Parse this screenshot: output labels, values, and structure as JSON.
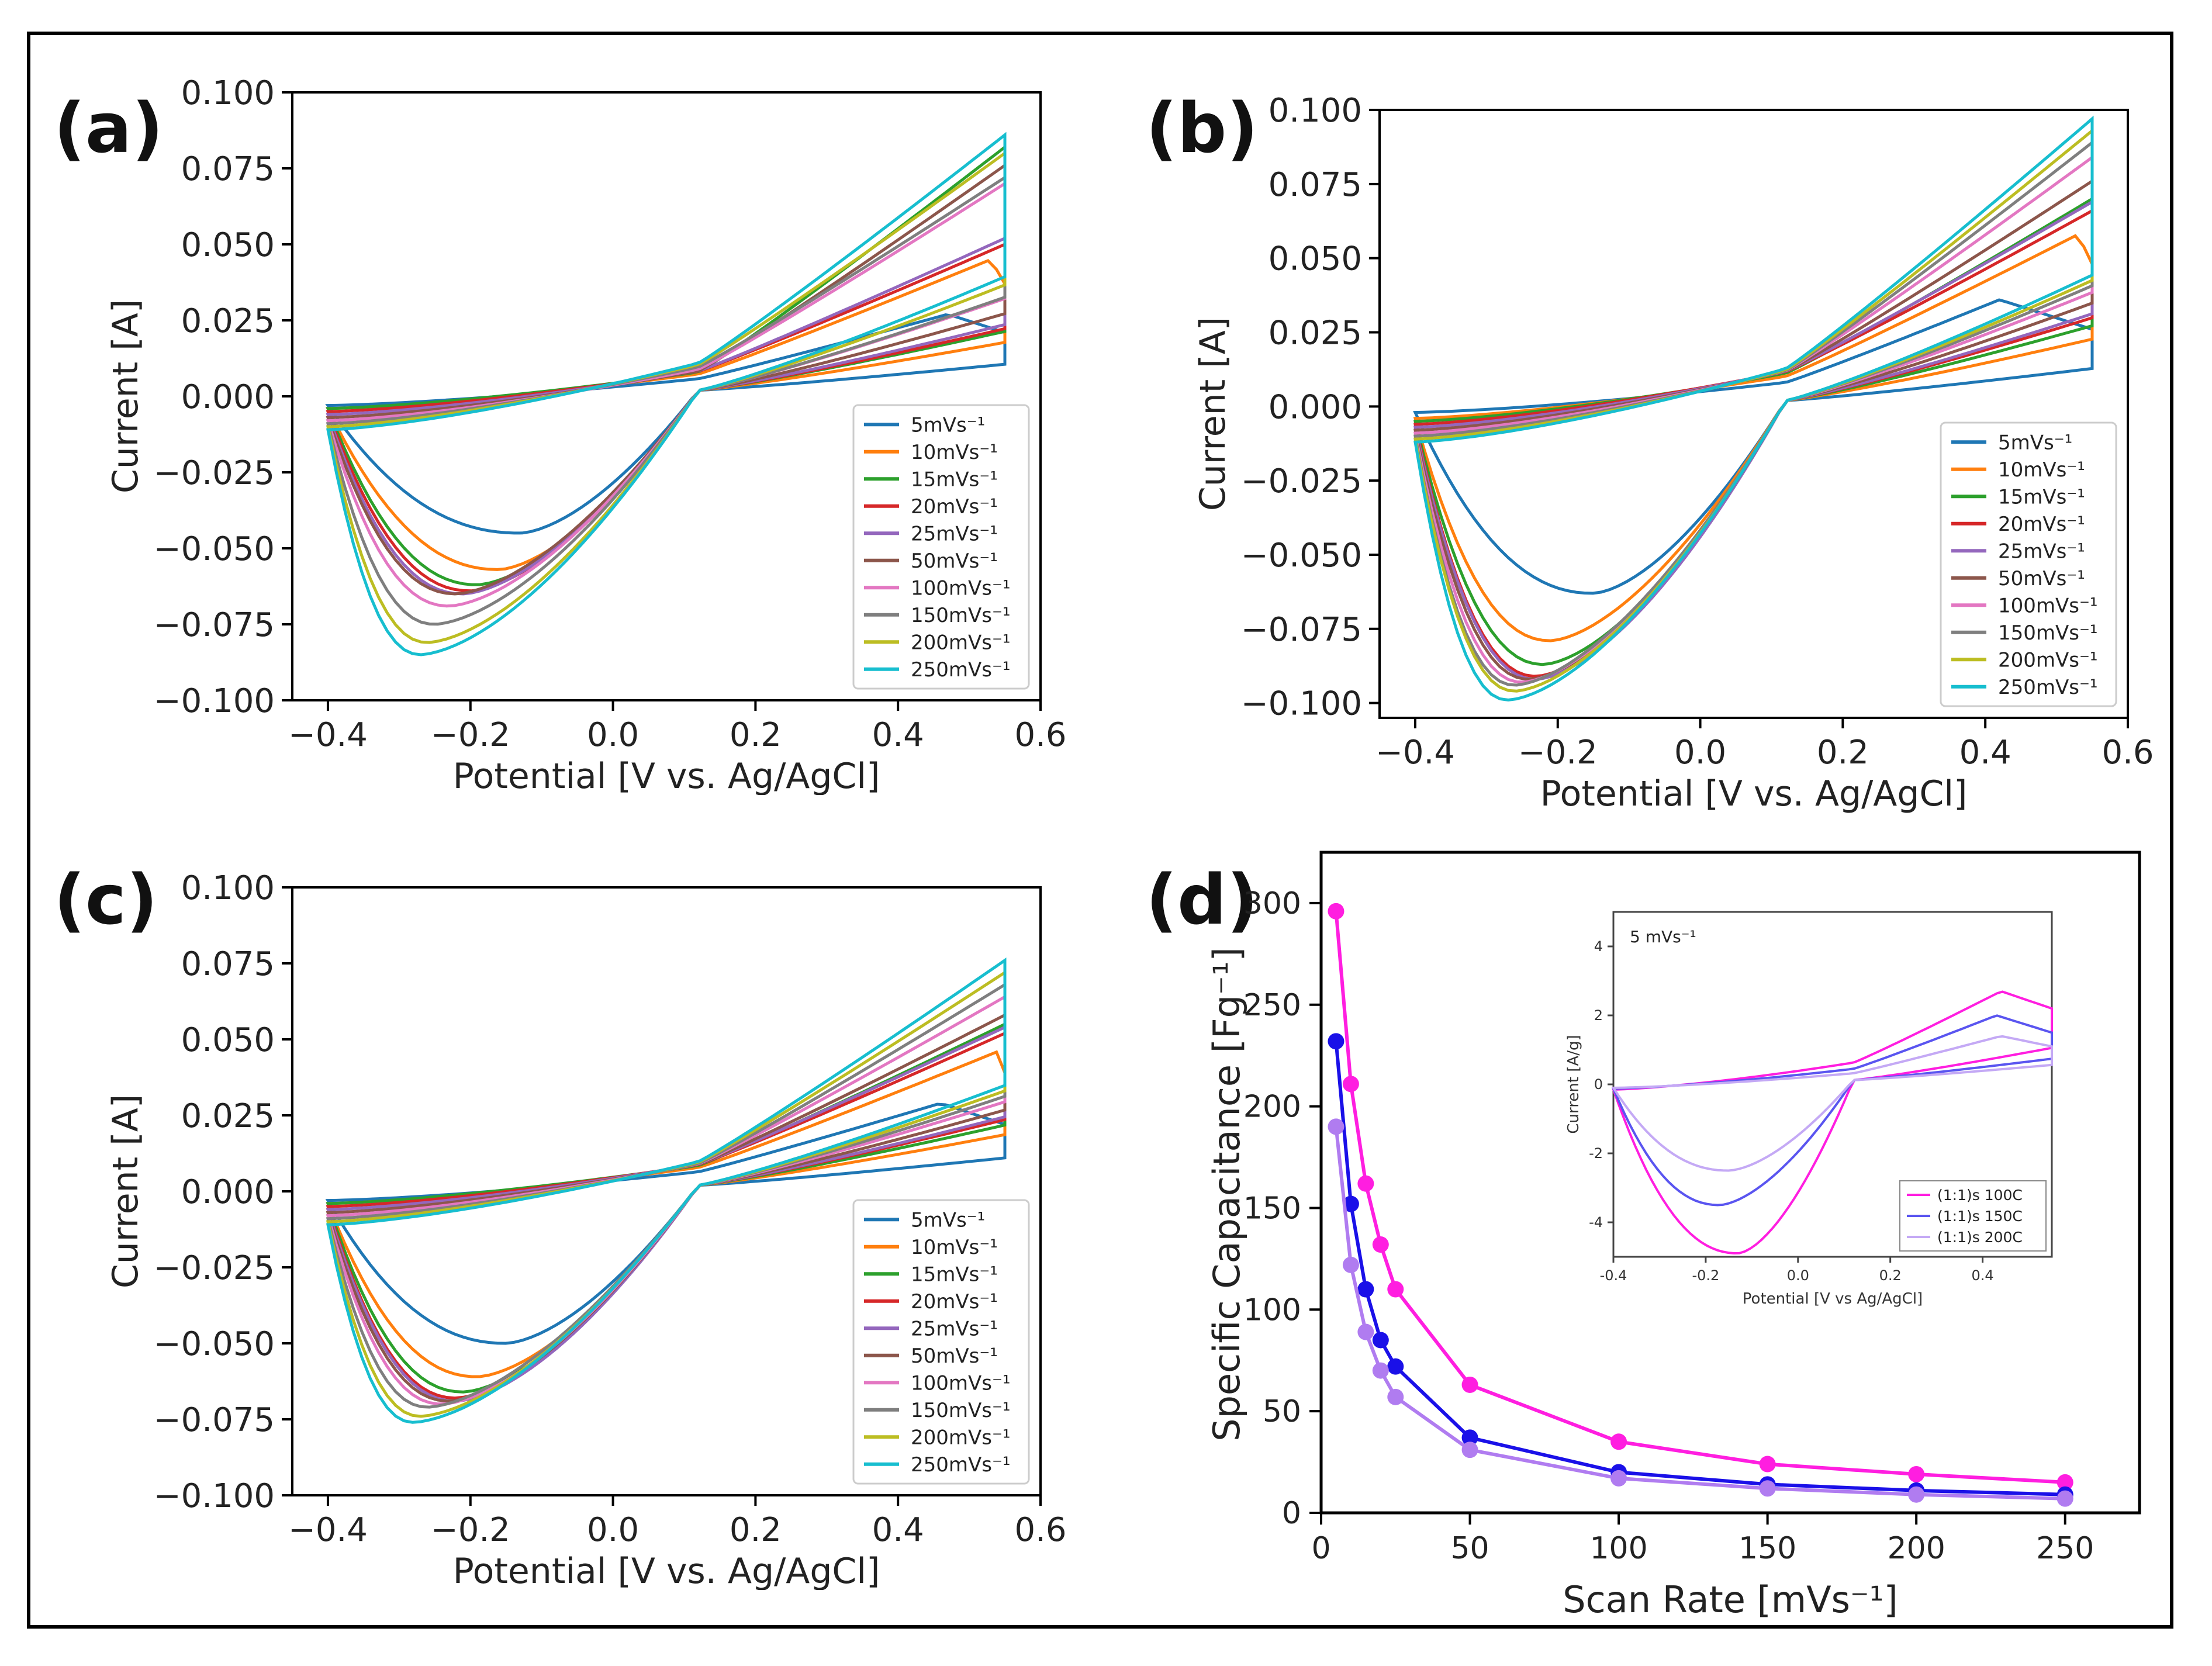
{
  "panel_labels": [
    "(a)",
    "(b)",
    "(c)",
    "(d)"
  ],
  "chart_data": [
    {
      "panel": "(a)",
      "type": "line",
      "xlabel": "Potential [V vs. Ag/AgCl]",
      "ylabel": "Current [A]",
      "xlim": [
        -0.45,
        0.6
      ],
      "ylim": [
        -0.1,
        0.1
      ],
      "xticks": [
        -0.4,
        -0.2,
        0.0,
        0.2,
        0.4,
        0.6
      ],
      "xtick_labels": [
        "−0.4",
        "−0.2",
        "0.0",
        "0.2",
        "0.4",
        "0.6"
      ],
      "yticks": [
        -0.1,
        -0.075,
        -0.05,
        -0.025,
        0.0,
        0.025,
        0.05,
        0.075,
        0.1
      ],
      "ytick_labels": [
        "−0.100",
        "−0.075",
        "−0.050",
        "−0.025",
        "0.000",
        "0.025",
        "0.050",
        "0.075",
        "0.100"
      ],
      "legend_position": "lower-right",
      "series": [
        {
          "name": "5mVs⁻¹",
          "color": "#1f77b4",
          "peak_v": -0.13,
          "peak_i": -0.045,
          "switch_i": 0.021,
          "upper_i": 0.027,
          "upper_v": 0.47,
          "knee_i": -0.003
        },
        {
          "name": "10mVs⁻¹",
          "color": "#ff7f0e",
          "peak_v": -0.16,
          "peak_i": -0.057,
          "switch_i": 0.037,
          "upper_i": 0.045,
          "upper_v": 0.53,
          "knee_i": -0.004
        },
        {
          "name": "15mVs⁻¹",
          "color": "#2ca02c",
          "peak_v": -0.19,
          "peak_i": -0.062,
          "switch_i": 0.045,
          "upper_i": 0.082,
          "upper_v": 0.55,
          "knee_i": -0.004
        },
        {
          "name": "20mVs⁻¹",
          "color": "#d62728",
          "peak_v": -0.2,
          "peak_i": -0.064,
          "switch_i": 0.047,
          "upper_i": 0.05,
          "upper_v": 0.55,
          "knee_i": -0.005
        },
        {
          "name": "25mVs⁻¹",
          "color": "#9467bd",
          "peak_v": -0.21,
          "peak_i": -0.065,
          "switch_i": 0.05,
          "upper_i": 0.052,
          "upper_v": 0.55,
          "knee_i": -0.006
        },
        {
          "name": "50mVs⁻¹",
          "color": "#8c564b",
          "peak_v": -0.22,
          "peak_i": -0.065,
          "switch_i": 0.058,
          "upper_i": 0.076,
          "upper_v": 0.55,
          "knee_i": -0.007
        },
        {
          "name": "100mVs⁻¹",
          "color": "#e377c2",
          "peak_v": -0.23,
          "peak_i": -0.069,
          "switch_i": 0.069,
          "upper_i": 0.07,
          "upper_v": 0.55,
          "knee_i": -0.008
        },
        {
          "name": "150mVs⁻¹",
          "color": "#7f7f7f",
          "peak_v": -0.25,
          "peak_i": -0.075,
          "switch_i": 0.07,
          "upper_i": 0.072,
          "upper_v": 0.55,
          "knee_i": -0.009
        },
        {
          "name": "200mVs⁻¹",
          "color": "#bcbd22",
          "peak_v": -0.26,
          "peak_i": -0.081,
          "switch_i": 0.079,
          "upper_i": 0.08,
          "upper_v": 0.55,
          "knee_i": -0.01
        },
        {
          "name": "250mVs⁻¹",
          "color": "#17becf",
          "peak_v": -0.27,
          "peak_i": -0.085,
          "switch_i": 0.085,
          "upper_i": 0.086,
          "upper_v": 0.55,
          "knee_i": -0.011
        }
      ]
    },
    {
      "panel": "(b)",
      "type": "line",
      "xlabel": "Potential [V vs. Ag/AgCl]",
      "ylabel": "Current [A]",
      "xlim": [
        -0.45,
        0.6
      ],
      "ylim": [
        -0.105,
        0.1
      ],
      "xticks": [
        -0.4,
        -0.2,
        0.0,
        0.2,
        0.4,
        0.6
      ],
      "xtick_labels": [
        "−0.4",
        "−0.2",
        "0.0",
        "0.2",
        "0.4",
        "0.6"
      ],
      "yticks": [
        -0.1,
        -0.075,
        -0.05,
        -0.025,
        0.0,
        0.025,
        0.05,
        0.075,
        0.1
      ],
      "ytick_labels": [
        "−0.100",
        "−0.075",
        "−0.050",
        "−0.025",
        "0.000",
        "0.025",
        "0.050",
        "0.075",
        "0.100"
      ],
      "legend_position": "lower-right",
      "series": [
        {
          "name": "5mVs⁻¹",
          "color": "#1f77b4",
          "peak_v": -0.15,
          "peak_i": -0.063,
          "switch_i": 0.026,
          "upper_i": 0.036,
          "upper_v": 0.42,
          "knee_i": -0.002
        },
        {
          "name": "10mVs⁻¹",
          "color": "#ff7f0e",
          "peak_v": -0.21,
          "peak_i": -0.079,
          "switch_i": 0.048,
          "upper_i": 0.058,
          "upper_v": 0.53,
          "knee_i": -0.004
        },
        {
          "name": "15mVs⁻¹",
          "color": "#2ca02c",
          "peak_v": -0.22,
          "peak_i": -0.087,
          "switch_i": 0.058,
          "upper_i": 0.07,
          "upper_v": 0.55,
          "knee_i": -0.005
        },
        {
          "name": "20mVs⁻¹",
          "color": "#d62728",
          "peak_v": -0.23,
          "peak_i": -0.091,
          "switch_i": 0.064,
          "upper_i": 0.066,
          "upper_v": 0.55,
          "knee_i": -0.006
        },
        {
          "name": "25mVs⁻¹",
          "color": "#9467bd",
          "peak_v": -0.23,
          "peak_i": -0.092,
          "switch_i": 0.067,
          "upper_i": 0.069,
          "upper_v": 0.55,
          "knee_i": -0.007
        },
        {
          "name": "50mVs⁻¹",
          "color": "#8c564b",
          "peak_v": -0.24,
          "peak_i": -0.092,
          "switch_i": 0.075,
          "upper_i": 0.076,
          "upper_v": 0.55,
          "knee_i": -0.008
        },
        {
          "name": "100mVs⁻¹",
          "color": "#e377c2",
          "peak_v": -0.25,
          "peak_i": -0.093,
          "switch_i": 0.083,
          "upper_i": 0.084,
          "upper_v": 0.55,
          "knee_i": -0.009
        },
        {
          "name": "150mVs⁻¹",
          "color": "#7f7f7f",
          "peak_v": -0.26,
          "peak_i": -0.094,
          "switch_i": 0.088,
          "upper_i": 0.089,
          "upper_v": 0.55,
          "knee_i": -0.01
        },
        {
          "name": "200mVs⁻¹",
          "color": "#bcbd22",
          "peak_v": -0.26,
          "peak_i": -0.096,
          "switch_i": 0.092,
          "upper_i": 0.093,
          "upper_v": 0.55,
          "knee_i": -0.011
        },
        {
          "name": "250mVs⁻¹",
          "color": "#17becf",
          "peak_v": -0.27,
          "peak_i": -0.099,
          "switch_i": 0.096,
          "upper_i": 0.097,
          "upper_v": 0.55,
          "knee_i": -0.012
        }
      ]
    },
    {
      "panel": "(c)",
      "type": "line",
      "xlabel": "Potential [V vs. Ag/AgCl]",
      "ylabel": "Current [A]",
      "xlim": [
        -0.45,
        0.6
      ],
      "ylim": [
        -0.1,
        0.1
      ],
      "xticks": [
        -0.4,
        -0.2,
        0.0,
        0.2,
        0.4,
        0.6
      ],
      "xtick_labels": [
        "−0.4",
        "−0.2",
        "0.0",
        "0.2",
        "0.4",
        "0.6"
      ],
      "yticks": [
        -0.1,
        -0.075,
        -0.05,
        -0.025,
        0.0,
        0.025,
        0.05,
        0.075,
        0.1
      ],
      "ytick_labels": [
        "−0.100",
        "−0.075",
        "−0.050",
        "−0.025",
        "0.000",
        "0.025",
        "0.050",
        "0.075",
        "0.100"
      ],
      "legend_position": "lower-right",
      "series": [
        {
          "name": "5mVs⁻¹",
          "color": "#1f77b4",
          "peak_v": -0.15,
          "peak_i": -0.05,
          "switch_i": 0.022,
          "upper_i": 0.029,
          "upper_v": 0.46,
          "knee_i": -0.003
        },
        {
          "name": "10mVs⁻¹",
          "color": "#ff7f0e",
          "peak_v": -0.19,
          "peak_i": -0.061,
          "switch_i": 0.039,
          "upper_i": 0.046,
          "upper_v": 0.54,
          "knee_i": -0.004
        },
        {
          "name": "15mVs⁻¹",
          "color": "#2ca02c",
          "peak_v": -0.21,
          "peak_i": -0.066,
          "switch_i": 0.046,
          "upper_i": 0.055,
          "upper_v": 0.55,
          "knee_i": -0.004
        },
        {
          "name": "20mVs⁻¹",
          "color": "#d62728",
          "peak_v": -0.22,
          "peak_i": -0.068,
          "switch_i": 0.05,
          "upper_i": 0.052,
          "upper_v": 0.55,
          "knee_i": -0.005
        },
        {
          "name": "25mVs⁻¹",
          "color": "#9467bd",
          "peak_v": -0.22,
          "peak_i": -0.069,
          "switch_i": 0.052,
          "upper_i": 0.054,
          "upper_v": 0.55,
          "knee_i": -0.006
        },
        {
          "name": "50mVs⁻¹",
          "color": "#8c564b",
          "peak_v": -0.23,
          "peak_i": -0.069,
          "switch_i": 0.057,
          "upper_i": 0.058,
          "upper_v": 0.55,
          "knee_i": -0.007
        },
        {
          "name": "100mVs⁻¹",
          "color": "#e377c2",
          "peak_v": -0.24,
          "peak_i": -0.07,
          "switch_i": 0.063,
          "upper_i": 0.064,
          "upper_v": 0.55,
          "knee_i": -0.008
        },
        {
          "name": "150mVs⁻¹",
          "color": "#7f7f7f",
          "peak_v": -0.26,
          "peak_i": -0.071,
          "switch_i": 0.067,
          "upper_i": 0.068,
          "upper_v": 0.55,
          "knee_i": -0.009
        },
        {
          "name": "200mVs⁻¹",
          "color": "#bcbd22",
          "peak_v": -0.27,
          "peak_i": -0.074,
          "switch_i": 0.071,
          "upper_i": 0.072,
          "upper_v": 0.55,
          "knee_i": -0.01
        },
        {
          "name": "250mVs⁻¹",
          "color": "#17becf",
          "peak_v": -0.28,
          "peak_i": -0.076,
          "switch_i": 0.075,
          "upper_i": 0.076,
          "upper_v": 0.55,
          "knee_i": -0.011
        }
      ]
    },
    {
      "panel": "(d)",
      "type": "scatter",
      "xlabel": "Scan Rate [mVs⁻¹]",
      "ylabel": "Specific Capacitance [Fg⁻¹]",
      "xlim": [
        0,
        275
      ],
      "ylim": [
        0,
        325
      ],
      "xticks": [
        0,
        50,
        100,
        150,
        200,
        250
      ],
      "yticks": [
        0,
        50,
        100,
        150,
        200,
        250,
        300
      ],
      "x": [
        5,
        10,
        15,
        20,
        25,
        50,
        100,
        150,
        200,
        250
      ],
      "series": [
        {
          "name": "(1:1)s 100C",
          "color": "#ff1ee0",
          "values": [
            296,
            211,
            162,
            132,
            110,
            63,
            35,
            24,
            19,
            15
          ]
        },
        {
          "name": "(1:1)s 150C",
          "color": "#1a10e8",
          "values": [
            232,
            152,
            110,
            85,
            72,
            37,
            20,
            14,
            11,
            9
          ]
        },
        {
          "name": "(1:1)s 200C",
          "color": "#b07cf0",
          "values": [
            190,
            122,
            89,
            70,
            57,
            31,
            17,
            12,
            9,
            7
          ]
        }
      ],
      "inset": {
        "type": "line",
        "annotation": "5 mVs⁻¹",
        "xlabel": "Potential [V vs Ag/AgCl]",
        "ylabel": "Current [A/g]",
        "xlim": [
          -0.4,
          0.55
        ],
        "ylim": [
          -5,
          5
        ],
        "xticks": [
          -0.4,
          -0.2,
          0.0,
          0.2,
          0.4
        ],
        "xtick_labels": [
          "-0.4",
          "-0.2",
          "0.0",
          "0.2",
          "0.4"
        ],
        "yticks": [
          -4,
          -2,
          0,
          2,
          4
        ],
        "ytick_labels": [
          "-4",
          "-2",
          "0",
          "2",
          "4"
        ],
        "legend_position": "lower-right",
        "series": [
          {
            "name": "(1:1)s 100C",
            "color": "#ff1ee0",
            "peak_v": -0.13,
            "peak_i": -4.9,
            "switch_i": 2.2,
            "upper_i": 2.7,
            "upper_v": 0.44,
            "knee_i": -0.15
          },
          {
            "name": "(1:1)s 150C",
            "color": "#5a55f0",
            "peak_v": -0.17,
            "peak_i": -3.5,
            "switch_i": 1.5,
            "upper_i": 2.0,
            "upper_v": 0.43,
            "knee_i": -0.12
          },
          {
            "name": "(1:1)s 200C",
            "color": "#c4a9f5",
            "peak_v": -0.15,
            "peak_i": -2.5,
            "switch_i": 1.1,
            "upper_i": 1.4,
            "upper_v": 0.44,
            "knee_i": -0.1
          }
        ]
      }
    }
  ]
}
